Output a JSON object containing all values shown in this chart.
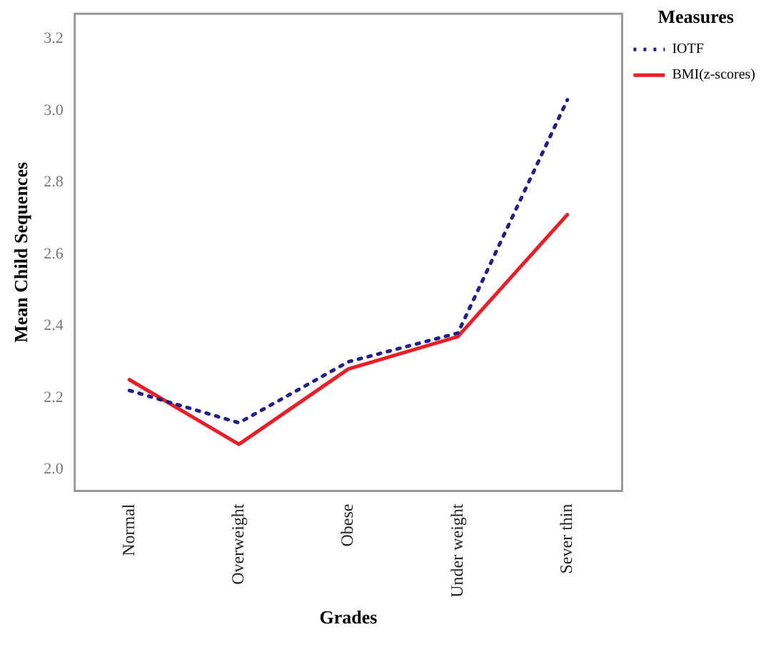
{
  "chart_data": {
    "type": "line",
    "xlabel": "Grades",
    "ylabel": "Mean Child Sequences",
    "legend_title": "Measures",
    "legend": "top right",
    "grid": false,
    "marker": "none",
    "categories": [
      "Normal",
      "Overweight",
      "Obese",
      "Under weight",
      "Sever thin"
    ],
    "ylim": [
      1.94,
      3.27
    ],
    "yticks": [
      {
        "value": 2,
        "label": "2.0"
      },
      {
        "value": 2.2,
        "label": "2.2"
      },
      {
        "value": 2.4,
        "label": "2.4"
      },
      {
        "value": 2.6,
        "label": "2.6"
      },
      {
        "value": 2.8,
        "label": "2.8"
      },
      {
        "value": 3,
        "label": "3.0"
      },
      {
        "value": 3.2,
        "label": "3.2"
      }
    ],
    "series": [
      {
        "name": "IOTF",
        "color": "#1f1f8c",
        "line_style": "dotted",
        "values": [
          2.22,
          2.13,
          2.3,
          2.38,
          3.03
        ]
      },
      {
        "name": "BMI(z-scores)",
        "color": "#ee1c25",
        "line_style": "solid",
        "values": [
          2.25,
          2.07,
          2.28,
          2.37,
          2.71
        ]
      }
    ]
  }
}
